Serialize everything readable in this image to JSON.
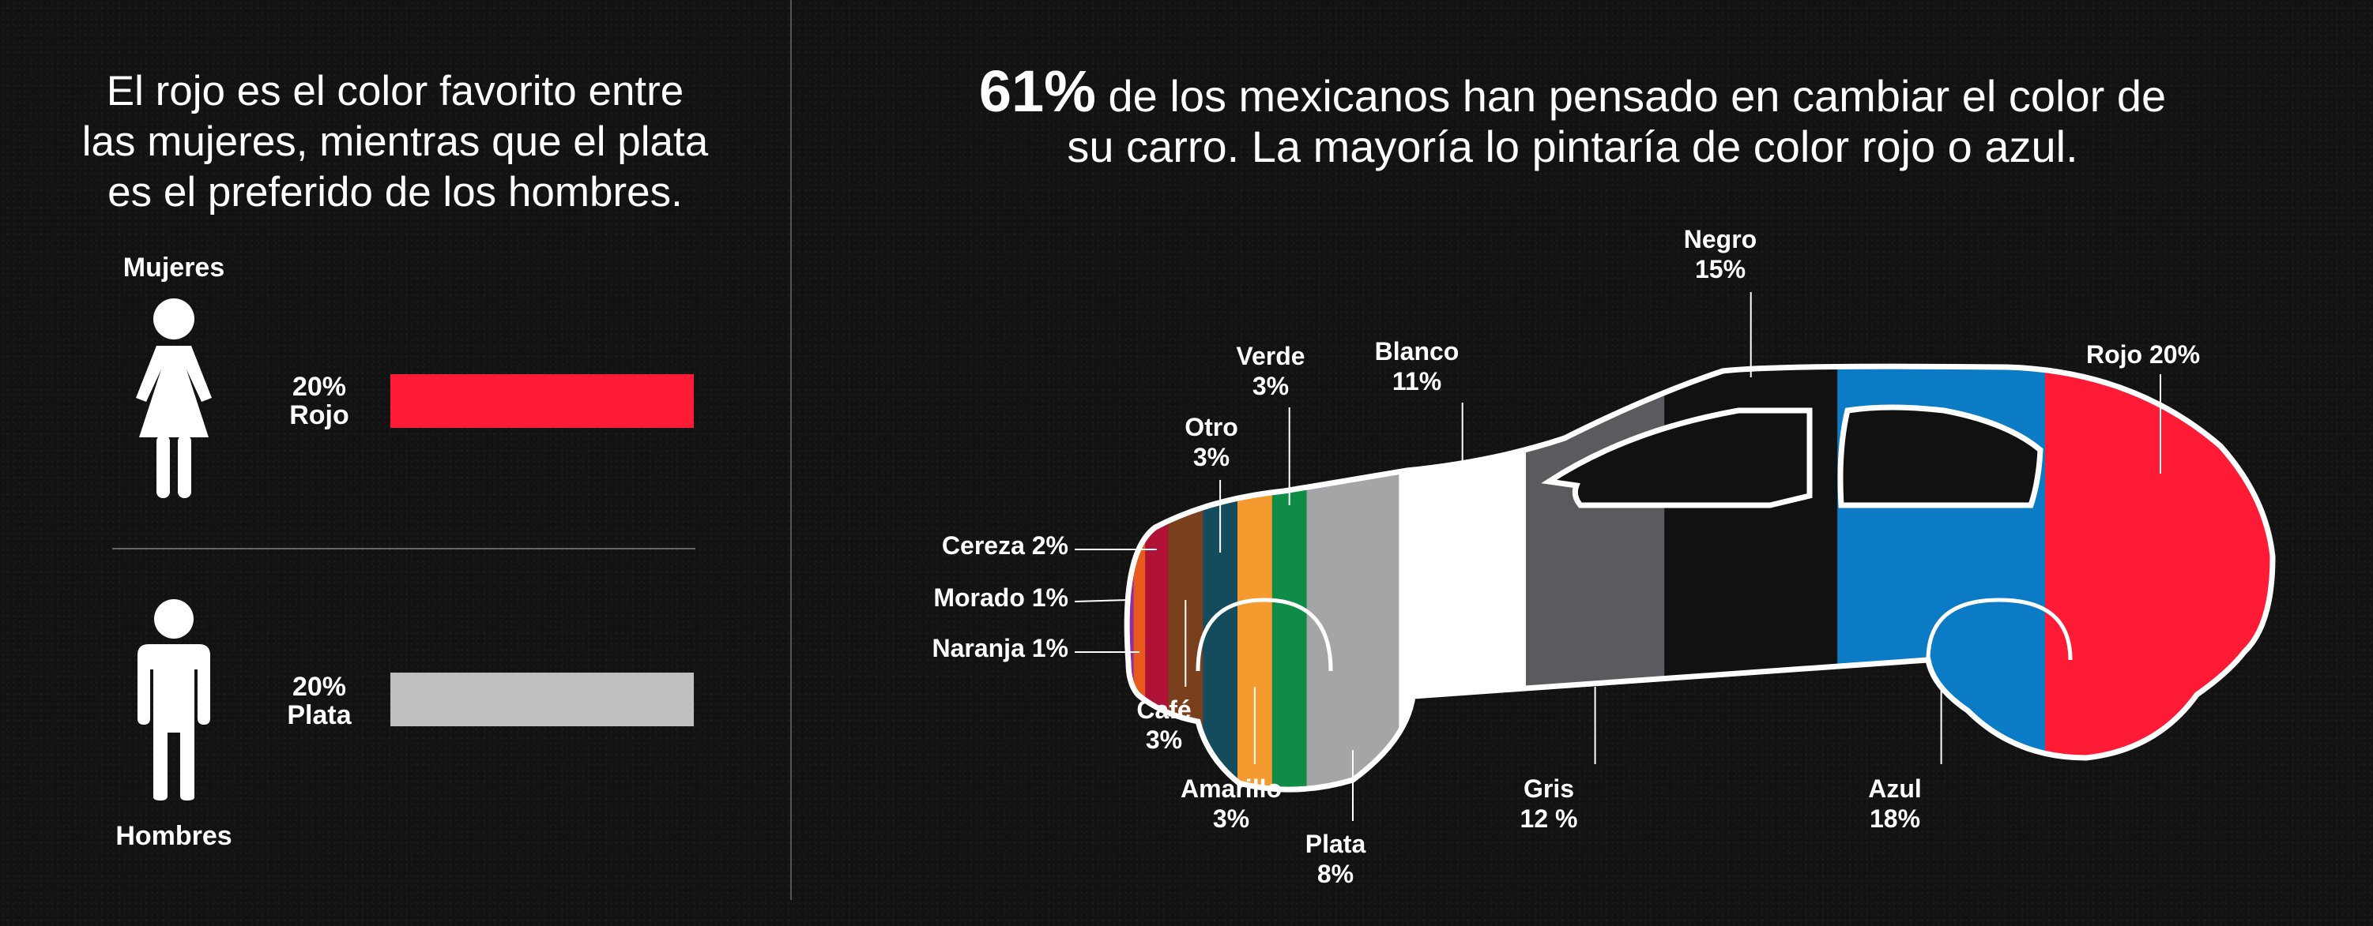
{
  "left": {
    "headline_lines": [
      "El rojo es el color favorito entre",
      "las mujeres, mientras que el plata",
      "es el preferido de los hombres."
    ],
    "women": {
      "label": "Mujeres",
      "pct": "20%",
      "color_name": "Rojo",
      "value": 20,
      "color": "#ff1a36"
    },
    "men": {
      "label": "Hombres",
      "pct": "20%",
      "color_name": "Plata",
      "value": 20,
      "color": "#bfbfc2"
    }
  },
  "right": {
    "headline_big": "61%",
    "headline_rest_1": " de los mexicanos han pensado en cambiar el color de",
    "headline_line_2": "su carro. La mayoría lo pintaría de color rojo o azul."
  },
  "chart_data": [
    {
      "type": "bar",
      "categories": [
        "Mujeres",
        "Hombres"
      ],
      "series": [
        {
          "values": [
            20,
            20
          ]
        }
      ],
      "labels": [
        "20% Rojo",
        "20% Plata"
      ]
    },
    {
      "type": "pie",
      "slices": [
        {
          "name": "Morado",
          "label_lines": [
            "Morado 1%"
          ],
          "value": 1,
          "color": "#8d2fa0"
        },
        {
          "name": "Naranja",
          "label_lines": [
            "Naranja 1%"
          ],
          "value": 1,
          "color": "#e8591c"
        },
        {
          "name": "Cereza",
          "label_lines": [
            "Cereza 2%"
          ],
          "value": 2,
          "color": "#b01237"
        },
        {
          "name": "Café",
          "label_lines": [
            "Café",
            "3%"
          ],
          "value": 3,
          "color": "#7a3f1d"
        },
        {
          "name": "Otro",
          "label_lines": [
            "Otro",
            "3%"
          ],
          "value": 3,
          "color": "#144c5e"
        },
        {
          "name": "Amarillo",
          "label_lines": [
            "Amarillo",
            "3%"
          ],
          "value": 3,
          "color": "#f59a2f"
        },
        {
          "name": "Verde",
          "label_lines": [
            "Verde",
            "3%"
          ],
          "value": 3,
          "color": "#0f8c45"
        },
        {
          "name": "Plata",
          "label_lines": [
            "Plata",
            "8%"
          ],
          "value": 8,
          "color": "#a3a5a7"
        },
        {
          "name": "Blanco",
          "label_lines": [
            "Blanco",
            "11%"
          ],
          "value": 11,
          "color": "#ffffff"
        },
        {
          "name": "Gris",
          "label_lines": [
            "Gris",
            "12 %"
          ],
          "value": 12,
          "color": "#5b5b5f"
        },
        {
          "name": "Negro",
          "label_lines": [
            "Negro",
            "15%"
          ],
          "value": 15,
          "color": "#111111"
        },
        {
          "name": "Azul",
          "label_lines": [
            "Azul",
            "18%"
          ],
          "value": 18,
          "color": "#0a7bc4"
        },
        {
          "name": "Rojo",
          "label_lines": [
            "Rojo 20%"
          ],
          "value": 20,
          "color": "#ff1a36"
        }
      ]
    }
  ]
}
